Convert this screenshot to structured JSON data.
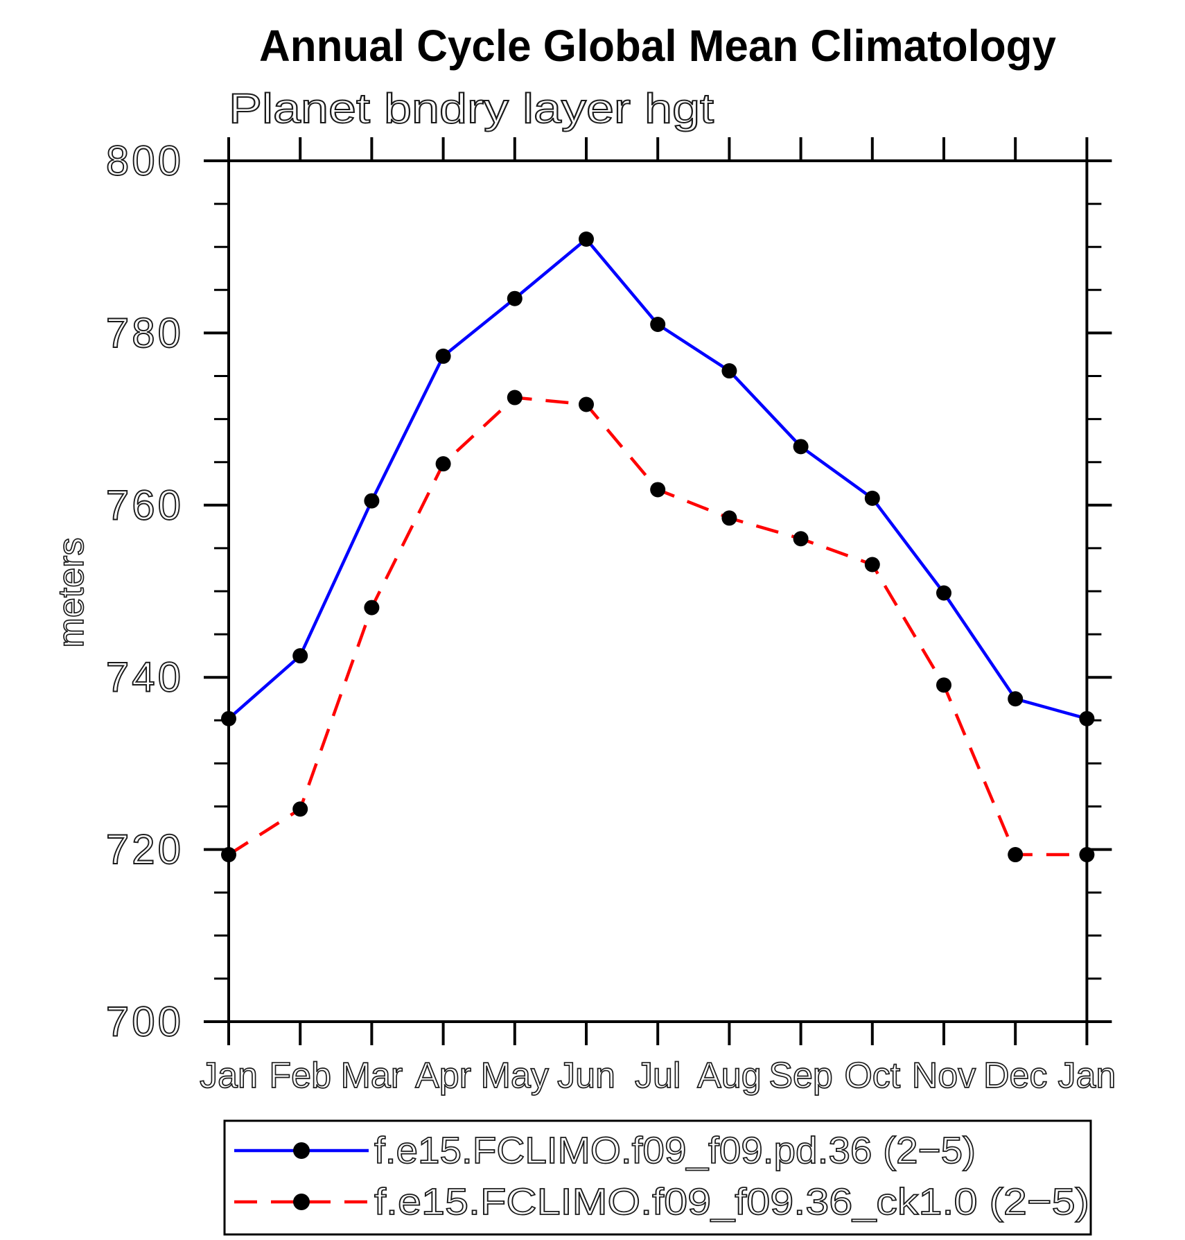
{
  "title": "Annual Cycle Global Mean Climatology",
  "subtitle": "Planet bndry layer hgt",
  "y_axis": {
    "title": "meters",
    "tick_labels": [
      "800",
      "780",
      "760",
      "740",
      "720",
      "700"
    ]
  },
  "x_axis": {
    "labels": [
      "Jan",
      "Feb",
      "Mar",
      "Apr",
      "May",
      "Jun",
      "Jul",
      "Aug",
      "Sep",
      "Oct",
      "Nov",
      "Dec",
      "Jan"
    ]
  },
  "legend": {
    "entries": [
      {
        "label": "f.e15.FCLIMO.f09_f09.pd.36 (2−5)",
        "color": "#0000ff",
        "style": "solid",
        "marker": "black-circle"
      },
      {
        "label": "f.e15.FCLIMO.f09_f09.36_ck1.0 (2−5)",
        "color": "#ff0000",
        "style": "dashed",
        "marker": "black-circle"
      }
    ]
  },
  "chart_data": {
    "type": "line",
    "title": "Annual Cycle Global Mean Climatology",
    "subtitle": "Planet bndry layer hgt",
    "xlabel": "",
    "ylabel": "meters",
    "categories": [
      "Jan",
      "Feb",
      "Mar",
      "Apr",
      "May",
      "Jun",
      "Jul",
      "Aug",
      "Sep",
      "Oct",
      "Nov",
      "Dec",
      "Jan"
    ],
    "ylim": [
      700,
      800
    ],
    "y_major_ticks": [
      700,
      720,
      740,
      760,
      780,
      800
    ],
    "y_minor_tick_step": 5,
    "grid": false,
    "legend_position": "bottom",
    "marker_color": "#000000",
    "series": [
      {
        "name": "f.e15.FCLIMO.f09_f09.pd.36 (2−5)",
        "color": "#0000ff",
        "line_style": "solid",
        "marker": "circle",
        "values": [
          735.2,
          742.5,
          760.5,
          777.3,
          784.0,
          790.9,
          781.0,
          775.6,
          766.8,
          760.8,
          749.8,
          737.5,
          735.2
        ]
      },
      {
        "name": "f.e15.FCLIMO.f09_f09.36_ck1.0 (2−5)",
        "color": "#ff0000",
        "line_style": "dashed",
        "marker": "circle",
        "values": [
          719.4,
          724.7,
          748.1,
          764.8,
          772.5,
          771.7,
          761.8,
          758.5,
          756.1,
          753.1,
          739.1,
          719.4,
          719.4
        ]
      }
    ]
  }
}
